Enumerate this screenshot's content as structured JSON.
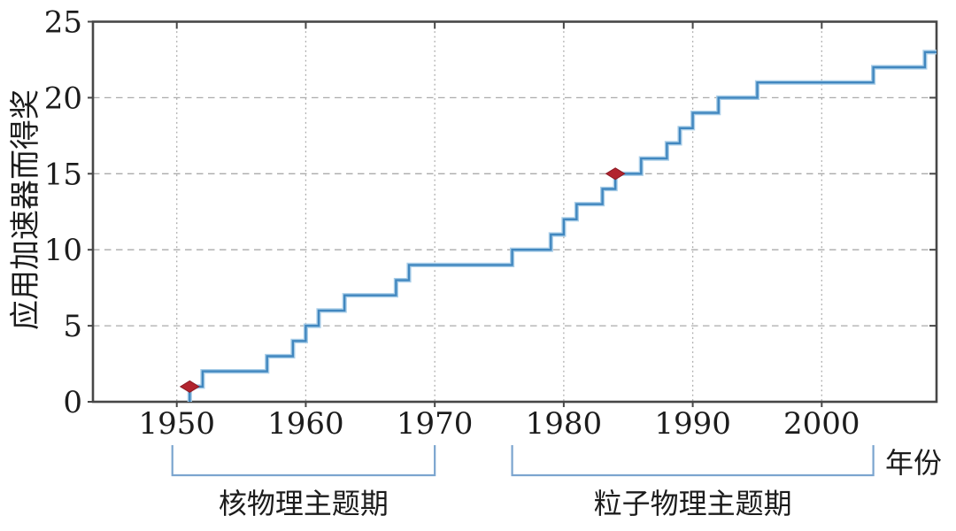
{
  "chart_data": {
    "type": "line",
    "subtype": "cumulative-step",
    "title": "",
    "xlabel": "年份",
    "ylabel": "应用加速器而得奖",
    "xlim": [
      1943.5,
      2008.9
    ],
    "ylim": [
      0,
      25
    ],
    "grid": true,
    "x_ticks": [
      1950,
      1960,
      1970,
      1980,
      1990,
      2000
    ],
    "x_tick_labels": [
      "1950",
      "1960",
      "1970",
      "1980",
      "1990",
      "2000"
    ],
    "y_ticks": [
      0,
      5,
      10,
      15,
      20,
      25
    ],
    "y_tick_labels": [
      "0",
      "5",
      "10",
      "15",
      "20",
      "25"
    ],
    "y_gridlines": [
      5,
      10,
      15,
      20
    ],
    "series": [
      {
        "x": [
          1951,
          1952,
          1957,
          1959,
          1960,
          1961,
          1963,
          1967,
          1968,
          1976,
          1979,
          1980,
          1981,
          1983,
          1984,
          1986,
          1988,
          1989,
          1990,
          1992,
          1995,
          2004,
          2008
        ],
        "y": [
          1,
          2,
          3,
          4,
          5,
          6,
          7,
          8,
          9,
          10,
          11,
          12,
          13,
          14,
          15,
          16,
          17,
          18,
          19,
          20,
          21,
          22,
          23
        ]
      }
    ],
    "markers": [
      {
        "x": 1951,
        "y": 1
      },
      {
        "x": 1984,
        "y": 15
      }
    ],
    "periods": [
      {
        "label": "核物理主题期",
        "start": 1950,
        "end": 1970
      },
      {
        "label": "粒子物理主题期",
        "start": 1976,
        "end": 2004
      }
    ]
  },
  "colors": {
    "line": "#4187bf",
    "line_halo": "#abcfe9",
    "marker_fill": "#b2242e",
    "marker_edge": "#8c1a24",
    "spine": "#474747",
    "grid": "#ababab",
    "bracket": "#7ba5cf",
    "text": "#1c1c1c"
  }
}
